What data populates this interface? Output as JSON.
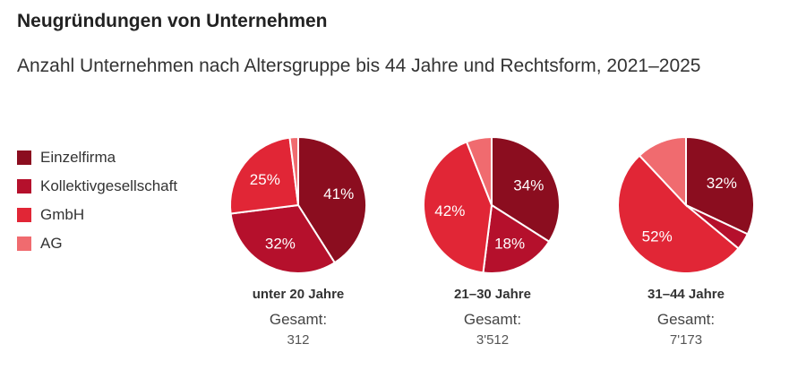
{
  "title": "Neugründungen von Unternehmen",
  "subtitle": "Anzahl Unternehmen nach Altersgruppe bis 44 Jahre und Rechtsform, 2021–2025",
  "colors": {
    "Einzelfirma": "#8b0d1f",
    "Kollektivgesellschaft": "#b5102c",
    "GmbH": "#e12636",
    "AG": "#f06b6f"
  },
  "chart_data": {
    "type": "pie",
    "legend": [
      "Einzelfirma",
      "Kollektivgesellschaft",
      "GmbH",
      "AG"
    ],
    "legend_position": "left",
    "categories": [
      "Einzelfirma",
      "Kollektivgesellschaft",
      "GmbH",
      "AG"
    ],
    "charts": [
      {
        "label": "unter 20 Jahre",
        "total_label": "Gesamt:",
        "total": "312",
        "values": [
          41,
          32,
          25,
          2
        ],
        "data_labels": [
          "41%",
          "32%",
          "25%",
          ""
        ]
      },
      {
        "label": "21–30 Jahre",
        "total_label": "Gesamt:",
        "total": "3'512",
        "values": [
          34,
          18,
          42,
          6
        ],
        "data_labels": [
          "34%",
          "18%",
          "42%",
          ""
        ]
      },
      {
        "label": "31–44 Jahre",
        "total_label": "Gesamt:",
        "total": "7'173",
        "values": [
          32,
          4,
          52,
          12
        ],
        "data_labels": [
          "32%",
          "",
          "52%",
          ""
        ]
      }
    ]
  }
}
